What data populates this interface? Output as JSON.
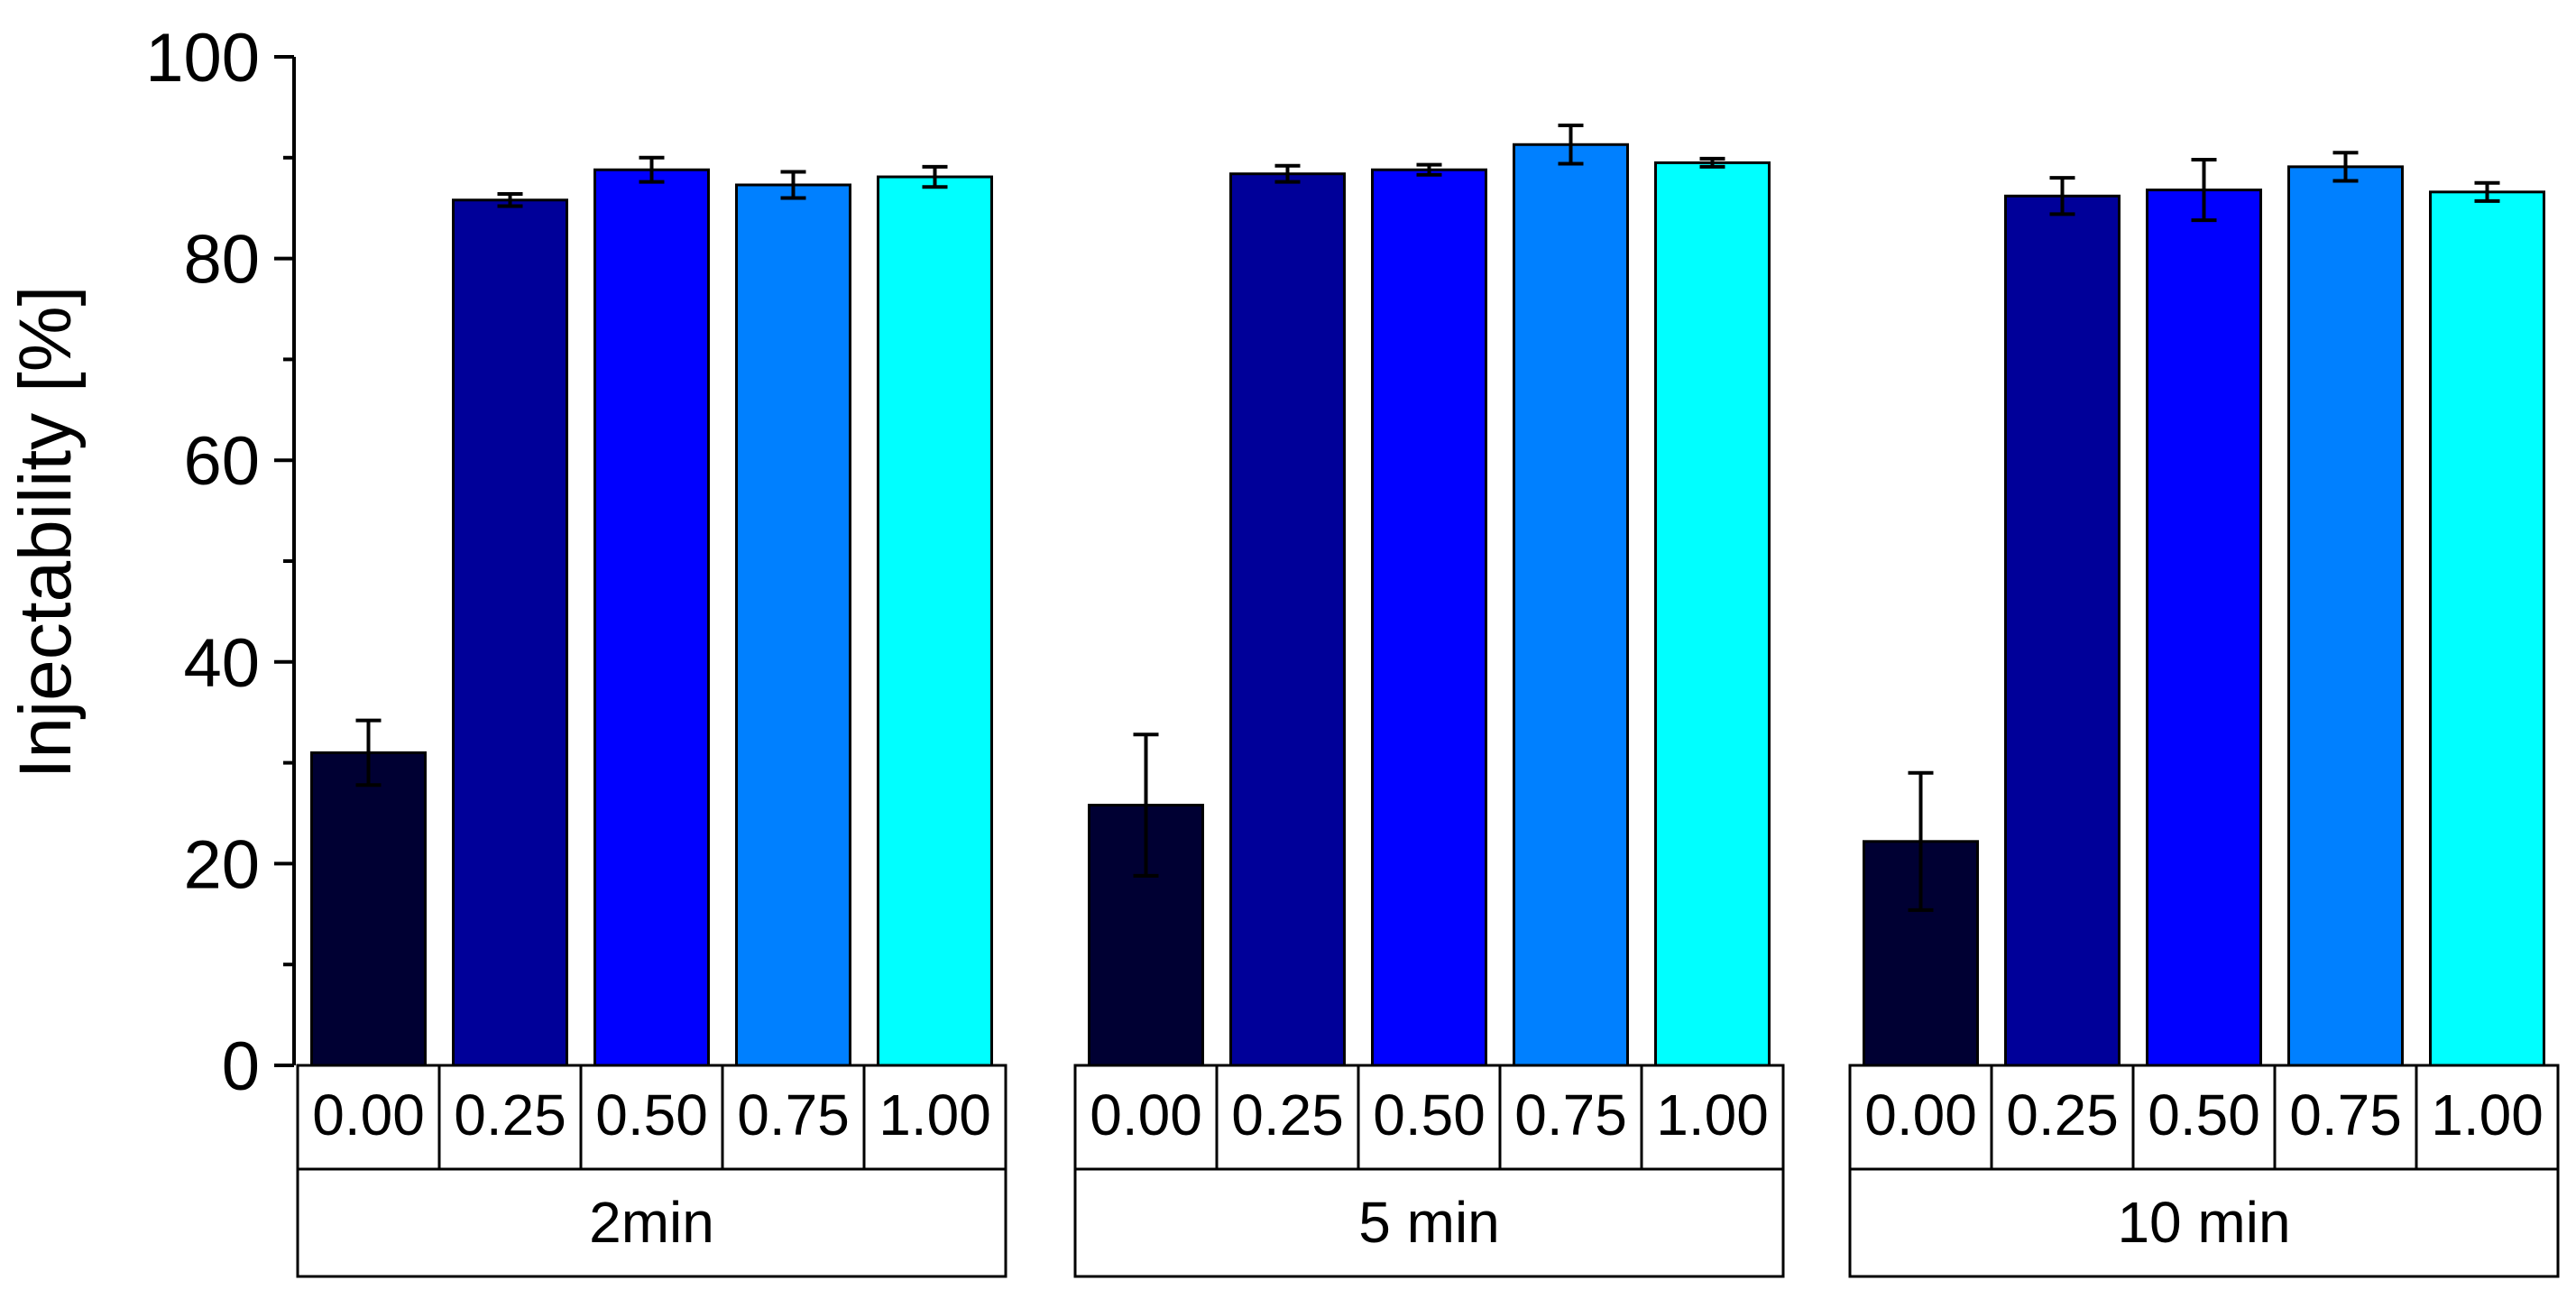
{
  "chart_data": {
    "type": "bar",
    "title": "",
    "xlabel": "",
    "ylabel": "Injectability [%]",
    "ylim": [
      0,
      100
    ],
    "yticks": [
      0,
      20,
      40,
      60,
      80,
      100
    ],
    "y_minor_step": 10,
    "grid": false,
    "legend": "none",
    "categories": [
      "0.00",
      "0.25",
      "0.50",
      "0.75",
      "1.00"
    ],
    "category_colors": [
      "#000033",
      "#000099",
      "#0000FF",
      "#0080FF",
      "#00FFFF"
    ],
    "groups": [
      {
        "name": "2min",
        "values": [
          31.0,
          85.8,
          88.8,
          87.3,
          88.1
        ],
        "errors": [
          3.2,
          0.6,
          1.2,
          1.3,
          1.0
        ]
      },
      {
        "name": "5 min",
        "values": [
          25.8,
          88.4,
          88.8,
          91.3,
          89.5
        ],
        "errors": [
          7.0,
          0.8,
          0.5,
          1.9,
          0.4
        ]
      },
      {
        "name": "10 min",
        "values": [
          22.2,
          86.2,
          86.8,
          89.1,
          86.6
        ],
        "errors": [
          6.8,
          1.8,
          3.0,
          1.4,
          0.9
        ]
      }
    ]
  }
}
